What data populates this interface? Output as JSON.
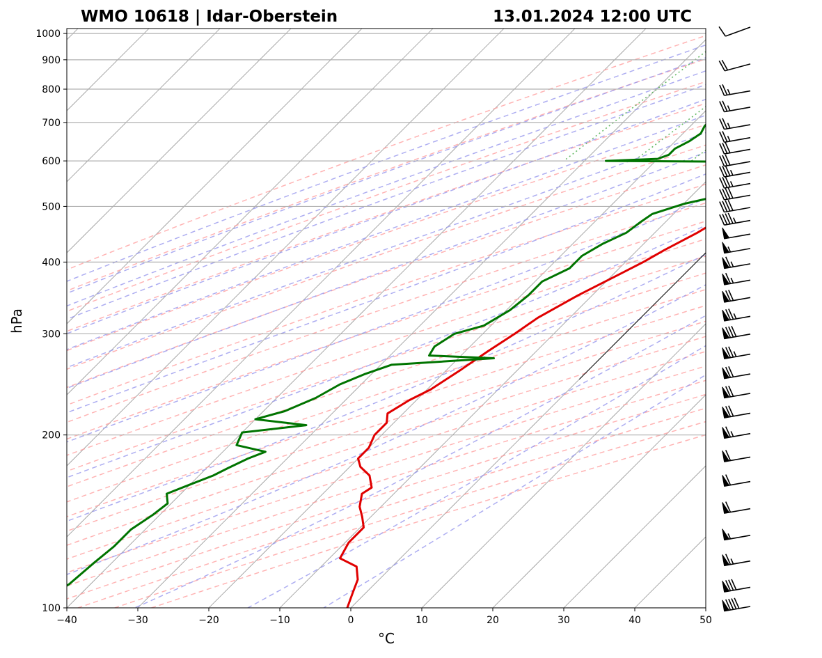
{
  "header": {
    "title_left": "WMO 10618 | Idar-Oberstein",
    "title_right": "13.01.2024 12:00 UTC"
  },
  "chart_data": {
    "type": "line",
    "chart_kind": "skew-T log-p",
    "xlabel": "°C",
    "ylabel": "hPa",
    "xlim": [
      -40,
      50
    ],
    "ylim": [
      1020,
      100
    ],
    "y_scale": "log",
    "grid": true,
    "x_ticks": [
      -40,
      -30,
      -20,
      -10,
      0,
      10,
      20,
      30,
      40,
      50
    ],
    "x_tick_labels": [
      "−40",
      "−30",
      "−20",
      "−10",
      "0",
      "10",
      "20",
      "30",
      "40",
      "50"
    ],
    "y_ticks": [
      1000,
      900,
      800,
      700,
      600,
      500,
      400,
      300,
      200,
      100
    ],
    "y_tick_labels": [
      "1000",
      "900",
      "800",
      "700",
      "600",
      "500",
      "400",
      "300",
      "200",
      "100"
    ],
    "colors": {
      "temperature": "#e00000",
      "dewpoint": "#007400",
      "dry_adiabats": "#ff9a9a",
      "moist_adiabats": "#9999ee",
      "mixing_ratio": "#4cae4c",
      "isotherms": "#8c8c8c",
      "isobars": "#b0b0b0"
    },
    "series": [
      {
        "id": "temperature",
        "p": [
          982,
          960,
          920,
          905,
          900,
          890,
          860,
          830,
          800,
          780,
          750,
          720,
          700,
          680,
          650,
          620,
          605,
          595,
          575,
          555,
          520,
          480,
          450,
          420,
          400,
          380,
          350,
          320,
          300,
          280,
          260,
          240,
          230,
          218,
          210,
          200,
          190,
          182,
          176,
          170,
          162,
          158,
          150,
          144,
          138,
          130,
          122,
          118,
          112,
          106,
          100
        ],
        "t": [
          -0.5,
          -1.5,
          -2.5,
          -2.8,
          2.0,
          5.5,
          9.0,
          9.3,
          9.0,
          8.0,
          6.5,
          6.0,
          4.5,
          4.0,
          3.5,
          4.5,
          5.5,
          5.5,
          4.0,
          2.0,
          0.0,
          -2.5,
          -4.0,
          -6.2,
          -7.5,
          -9.2,
          -12.0,
          -14.5,
          -15.5,
          -16.8,
          -18.0,
          -19.5,
          -21.0,
          -22.2,
          -21.0,
          -21.0,
          -20.0,
          -20.0,
          -18.5,
          -16.0,
          -14.0,
          -14.5,
          -13.0,
          -11.2,
          -9.5,
          -9.5,
          -8.5,
          -5.0,
          -3.0,
          -1.8,
          -0.5
        ]
      },
      {
        "id": "dewpoint",
        "p": [
          982,
          960,
          920,
          905,
          900,
          880,
          870,
          860,
          845,
          835,
          825,
          815,
          805,
          790,
          770,
          745,
          720,
          705,
          690,
          670,
          650,
          630,
          615,
          605,
          600,
          598,
          590,
          575,
          555,
          540,
          520,
          505,
          485,
          470,
          450,
          430,
          410,
          390,
          370,
          350,
          330,
          310,
          300,
          285,
          275,
          272,
          265,
          255,
          245,
          232,
          220,
          213,
          208,
          202,
          192,
          187,
          182,
          175,
          170,
          164,
          158,
          152,
          145,
          137,
          128,
          120,
          110,
          100
        ],
        "t": [
          -3.0,
          -4.0,
          -5.0,
          -5.5,
          -23.0,
          -12.0,
          -6.5,
          -12.0,
          -6.0,
          -14.0,
          -8.0,
          -14.0,
          -7.0,
          -12.5,
          -13.5,
          -13.0,
          -11.5,
          -18.0,
          -18.0,
          -17.5,
          -18.0,
          -19.0,
          -19.0,
          -20.0,
          -27.0,
          -8.0,
          -5.5,
          -6.0,
          -4.8,
          -6.0,
          -6.5,
          -10.0,
          -13.0,
          -13.5,
          -14.0,
          -15.8,
          -17.0,
          -17.0,
          -19.0,
          -19.0,
          -19.5,
          -21.0,
          -24.0,
          -25.0,
          -24.5,
          -15.0,
          -28.5,
          -31.0,
          -33.0,
          -34.5,
          -37.0,
          -40.0,
          -32.0,
          -40.0,
          -39.0,
          -34.0,
          -35.5,
          -37.0,
          -38.0,
          -40.0,
          -42.0,
          -40.5,
          -41.0,
          -42.0,
          -42.0,
          -42.5,
          -43.0,
          -45.0
        ]
      }
    ],
    "parcel_line": {
      "p": [
        1020,
        250
      ],
      "t": [
        0,
        0
      ]
    },
    "wind_barbs": {
      "levels": [
        1020,
        880,
        790,
        740,
        690,
        655,
        625,
        595,
        570,
        545,
        520,
        495,
        470,
        445,
        420,
        395,
        370,
        345,
        320,
        298,
        275,
        254,
        235,
        217,
        200,
        182,
        165,
        148,
        133,
        120,
        108,
        100
      ],
      "speed_kt": [
        10,
        20,
        25,
        25,
        25,
        25,
        30,
        30,
        35,
        35,
        40,
        40,
        45,
        50,
        55,
        65,
        65,
        70,
        75,
        80,
        75,
        70,
        70,
        70,
        65,
        60,
        60,
        60,
        55,
        65,
        80,
        90
      ],
      "direction_deg": [
        250,
        255,
        260,
        260,
        260,
        260,
        260,
        260,
        260,
        260,
        260,
        260,
        260,
        260,
        260,
        260,
        260,
        260,
        260,
        260,
        260,
        260,
        260,
        260,
        260,
        260,
        260,
        260,
        260,
        260,
        260,
        260
      ]
    }
  }
}
